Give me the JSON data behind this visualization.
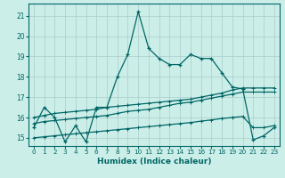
{
  "xlabel": "Humidex (Indice chaleur)",
  "background_color": "#cceee8",
  "grid_color": "#aacccc",
  "line_color": "#006666",
  "xlim": [
    -0.5,
    23.5
  ],
  "ylim": [
    14.6,
    21.6
  ],
  "yticks": [
    15,
    16,
    17,
    18,
    19,
    20,
    21
  ],
  "xticks": [
    0,
    1,
    2,
    3,
    4,
    5,
    6,
    7,
    8,
    9,
    10,
    11,
    12,
    13,
    14,
    15,
    16,
    17,
    18,
    19,
    20,
    21,
    22,
    23
  ],
  "line1_x": [
    0,
    1,
    2,
    3,
    4,
    5,
    6,
    7,
    8,
    9,
    10,
    11,
    12,
    13,
    14,
    15,
    16,
    17,
    18,
    19,
    20,
    21,
    22,
    23
  ],
  "line1_y": [
    15.5,
    16.5,
    16.0,
    14.8,
    15.6,
    14.8,
    16.5,
    16.5,
    18.0,
    19.1,
    21.2,
    19.4,
    18.9,
    18.6,
    18.6,
    19.1,
    18.9,
    18.9,
    18.2,
    17.5,
    17.4,
    14.9,
    15.1,
    15.5
  ],
  "line2_x": [
    0,
    1,
    2,
    3,
    4,
    5,
    6,
    7,
    8,
    9,
    10,
    11,
    12,
    13,
    14,
    15,
    16,
    17,
    18,
    19,
    20,
    21,
    22,
    23
  ],
  "line2_y": [
    16.0,
    16.1,
    16.2,
    16.25,
    16.3,
    16.35,
    16.4,
    16.5,
    16.55,
    16.6,
    16.65,
    16.7,
    16.75,
    16.8,
    16.85,
    16.9,
    17.0,
    17.1,
    17.2,
    17.35,
    17.45,
    17.45,
    17.45,
    17.45
  ],
  "line3_x": [
    0,
    1,
    2,
    3,
    4,
    5,
    6,
    7,
    8,
    9,
    10,
    11,
    12,
    13,
    14,
    15,
    16,
    17,
    18,
    19,
    20,
    21,
    22,
    23
  ],
  "line3_y": [
    15.7,
    15.8,
    15.85,
    15.9,
    15.95,
    16.0,
    16.05,
    16.1,
    16.2,
    16.3,
    16.35,
    16.4,
    16.5,
    16.6,
    16.7,
    16.75,
    16.85,
    16.95,
    17.05,
    17.15,
    17.25,
    17.25,
    17.25,
    17.25
  ],
  "line4_x": [
    0,
    1,
    2,
    3,
    4,
    5,
    6,
    7,
    8,
    9,
    10,
    11,
    12,
    13,
    14,
    15,
    16,
    17,
    18,
    19,
    20,
    21,
    22,
    23
  ],
  "line4_y": [
    15.0,
    15.05,
    15.1,
    15.15,
    15.2,
    15.25,
    15.3,
    15.35,
    15.4,
    15.45,
    15.5,
    15.55,
    15.6,
    15.65,
    15.7,
    15.75,
    15.82,
    15.88,
    15.95,
    16.0,
    16.05,
    15.5,
    15.5,
    15.6
  ]
}
